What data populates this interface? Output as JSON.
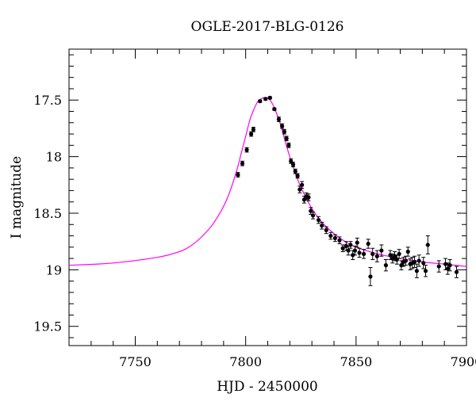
{
  "chart_data": {
    "type": "scatter",
    "title": "OGLE-2017-BLG-0126",
    "xlabel": "HJD - 2450000",
    "ylabel": "I magnitude",
    "xlim": [
      7720,
      7900
    ],
    "ylim": [
      19.67,
      17.05
    ],
    "y_inverted": true,
    "grid": false,
    "x_major_ticks": [
      7750,
      7800,
      7850,
      7900
    ],
    "x_tick_labels": [
      "7750",
      "7800",
      "7850",
      "7900"
    ],
    "y_major_ticks": [
      17.5,
      18,
      18.5,
      19,
      19.5
    ],
    "y_tick_labels": [
      "17.5",
      "18",
      "18.5",
      "19",
      "19.5"
    ],
    "colors": {
      "model": "#ff00ff",
      "points": "#000000"
    },
    "series": [
      {
        "kind": "points_with_errorbars",
        "x": [
          7796.5,
          7798.5,
          7800.5,
          7802.5,
          7803.5,
          7806.5,
          7809,
          7811,
          7813,
          7815,
          7816.5,
          7817.5,
          7818.5,
          7819.5,
          7820.5,
          7821.5,
          7822.5,
          7823.5,
          7824.5,
          7825.5,
          7826.5,
          7827.5,
          7828.5,
          7829.5,
          7830.5,
          7833,
          7834.5,
          7836.5,
          7838.5,
          7840.5,
          7842.5,
          7844,
          7845.5,
          7846.5,
          7847.5,
          7848.5,
          7849.5,
          7850.5,
          7851.5,
          7853.5,
          7855.5,
          7856.5,
          7857.5,
          7859.5,
          7861.5,
          7863.5,
          7865.5,
          7866.5,
          7867.5,
          7868.5,
          7869.5,
          7870.5,
          7871.5,
          7872.5,
          7873.5,
          7874.5,
          7875.5,
          7876.5,
          7877.5,
          7878.5,
          7880.5,
          7881.5,
          7882.5,
          7887.5,
          7890.5,
          7891.5,
          7892.5,
          7895.5
        ],
        "y": [
          18.16,
          18.06,
          17.94,
          17.8,
          17.76,
          17.51,
          17.49,
          17.48,
          17.58,
          17.67,
          17.73,
          17.78,
          17.84,
          17.9,
          18.04,
          18.07,
          18.13,
          18.17,
          18.29,
          18.25,
          18.38,
          18.35,
          18.36,
          18.48,
          18.52,
          18.56,
          18.61,
          18.65,
          18.7,
          18.72,
          18.74,
          18.81,
          18.79,
          18.83,
          18.78,
          18.87,
          18.83,
          18.76,
          18.85,
          18.86,
          18.77,
          19.06,
          18.86,
          18.88,
          18.83,
          18.96,
          18.87,
          18.9,
          18.88,
          18.91,
          18.86,
          18.96,
          18.93,
          18.92,
          18.84,
          18.95,
          18.94,
          18.93,
          19.01,
          18.92,
          18.94,
          19.01,
          18.78,
          18.97,
          18.95,
          18.99,
          18.96,
          19.02
        ],
        "yerr": [
          0.02,
          0.02,
          0.02,
          0.02,
          0.02,
          0.01,
          0.01,
          0.01,
          0.01,
          0.02,
          0.02,
          0.02,
          0.02,
          0.02,
          0.02,
          0.02,
          0.02,
          0.02,
          0.03,
          0.03,
          0.03,
          0.03,
          0.03,
          0.03,
          0.03,
          0.03,
          0.03,
          0.03,
          0.03,
          0.03,
          0.03,
          0.03,
          0.04,
          0.04,
          0.03,
          0.04,
          0.04,
          0.04,
          0.04,
          0.04,
          0.04,
          0.08,
          0.05,
          0.05,
          0.05,
          0.05,
          0.04,
          0.04,
          0.04,
          0.04,
          0.04,
          0.04,
          0.04,
          0.04,
          0.04,
          0.05,
          0.05,
          0.05,
          0.06,
          0.05,
          0.05,
          0.05,
          0.08,
          0.05,
          0.05,
          0.05,
          0.05,
          0.05
        ]
      },
      {
        "kind": "model_curve",
        "type": "line",
        "x": [
          7720,
          7740,
          7760,
          7770,
          7775,
          7780,
          7785,
          7790,
          7793,
          7796,
          7798,
          7800,
          7802,
          7804,
          7805,
          7806,
          7807,
          7808,
          7809,
          7810,
          7811,
          7812,
          7813,
          7815,
          7817,
          7819,
          7822,
          7825,
          7830,
          7835,
          7840,
          7845,
          7850,
          7860,
          7870,
          7880,
          7890,
          7900
        ],
        "y": [
          18.96,
          18.94,
          18.89,
          18.84,
          18.79,
          18.71,
          18.6,
          18.44,
          18.3,
          18.12,
          17.97,
          17.82,
          17.67,
          17.57,
          17.53,
          17.5,
          17.49,
          17.48,
          17.48,
          17.48,
          17.5,
          17.53,
          17.57,
          17.67,
          17.8,
          17.94,
          18.12,
          18.27,
          18.46,
          18.59,
          18.68,
          18.75,
          18.8,
          18.86,
          18.9,
          18.93,
          18.95,
          18.97
        ]
      }
    ]
  }
}
